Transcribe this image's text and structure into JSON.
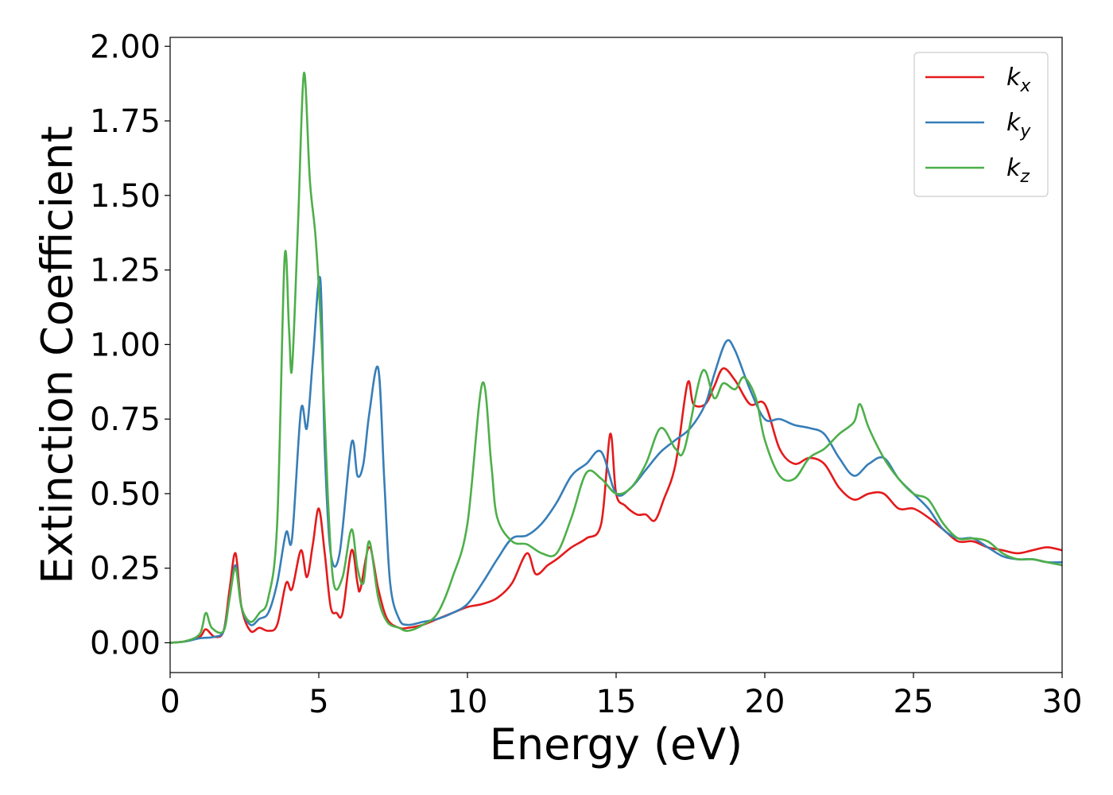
{
  "chart_data": {
    "type": "line",
    "xlabel": "Energy (eV)",
    "ylabel": "Extinction Coefficient",
    "xlim": [
      0,
      30
    ],
    "ylim": [
      -0.1,
      2.03
    ],
    "x_ticks": [
      0,
      5,
      10,
      15,
      20,
      25,
      30
    ],
    "y_ticks": [
      0.0,
      0.25,
      0.5,
      0.75,
      1.0,
      1.25,
      1.5,
      1.75,
      2.0
    ],
    "y_tick_labels": [
      "0.00",
      "0.25",
      "0.50",
      "0.75",
      "1.00",
      "1.25",
      "1.50",
      "1.75",
      "2.00"
    ],
    "grid": false,
    "legend_position": "top-right",
    "series": [
      {
        "name": "k",
        "subscript": "x",
        "color": "#e41a1c",
        "points": [
          [
            0,
            0
          ],
          [
            0.5,
            0.005
          ],
          [
            1.0,
            0.02
          ],
          [
            1.2,
            0.045
          ],
          [
            1.5,
            0.02
          ],
          [
            1.8,
            0.04
          ],
          [
            2.0,
            0.18
          ],
          [
            2.2,
            0.3
          ],
          [
            2.4,
            0.12
          ],
          [
            2.7,
            0.04
          ],
          [
            3.0,
            0.05
          ],
          [
            3.3,
            0.04
          ],
          [
            3.6,
            0.06
          ],
          [
            3.9,
            0.2
          ],
          [
            4.1,
            0.18
          ],
          [
            4.4,
            0.31
          ],
          [
            4.6,
            0.22
          ],
          [
            4.8,
            0.33
          ],
          [
            5.0,
            0.45
          ],
          [
            5.2,
            0.3
          ],
          [
            5.4,
            0.12
          ],
          [
            5.6,
            0.1
          ],
          [
            5.8,
            0.1
          ],
          [
            6.1,
            0.31
          ],
          [
            6.3,
            0.2
          ],
          [
            6.4,
            0.18
          ],
          [
            6.7,
            0.32
          ],
          [
            7.0,
            0.18
          ],
          [
            7.3,
            0.08
          ],
          [
            7.7,
            0.05
          ],
          [
            8.0,
            0.05
          ],
          [
            8.5,
            0.06
          ],
          [
            9.0,
            0.08
          ],
          [
            9.5,
            0.1
          ],
          [
            10.0,
            0.12
          ],
          [
            10.5,
            0.13
          ],
          [
            11.0,
            0.15
          ],
          [
            11.5,
            0.2
          ],
          [
            12.0,
            0.3
          ],
          [
            12.3,
            0.23
          ],
          [
            12.7,
            0.26
          ],
          [
            13.0,
            0.28
          ],
          [
            13.5,
            0.32
          ],
          [
            14.0,
            0.35
          ],
          [
            14.5,
            0.4
          ],
          [
            14.8,
            0.7
          ],
          [
            15.0,
            0.5
          ],
          [
            15.3,
            0.46
          ],
          [
            15.7,
            0.43
          ],
          [
            16.0,
            0.43
          ],
          [
            16.3,
            0.41
          ],
          [
            16.6,
            0.48
          ],
          [
            17.0,
            0.6
          ],
          [
            17.4,
            0.87
          ],
          [
            17.6,
            0.8
          ],
          [
            18.0,
            0.8
          ],
          [
            18.3,
            0.86
          ],
          [
            18.6,
            0.92
          ],
          [
            19.0,
            0.88
          ],
          [
            19.5,
            0.8
          ],
          [
            20.0,
            0.8
          ],
          [
            20.5,
            0.65
          ],
          [
            21.0,
            0.6
          ],
          [
            21.5,
            0.62
          ],
          [
            22.0,
            0.6
          ],
          [
            22.5,
            0.52
          ],
          [
            23.0,
            0.48
          ],
          [
            23.5,
            0.5
          ],
          [
            24.0,
            0.5
          ],
          [
            24.5,
            0.45
          ],
          [
            25.0,
            0.45
          ],
          [
            25.5,
            0.42
          ],
          [
            26.0,
            0.38
          ],
          [
            26.5,
            0.34
          ],
          [
            27.0,
            0.34
          ],
          [
            27.5,
            0.32
          ],
          [
            28.0,
            0.31
          ],
          [
            28.5,
            0.3
          ],
          [
            29.0,
            0.31
          ],
          [
            29.5,
            0.32
          ],
          [
            30.0,
            0.31
          ]
        ]
      },
      {
        "name": "k",
        "subscript": "y",
        "color": "#377eb8",
        "points": [
          [
            0,
            0
          ],
          [
            0.5,
            0.004
          ],
          [
            1.0,
            0.015
          ],
          [
            1.5,
            0.02
          ],
          [
            1.8,
            0.04
          ],
          [
            2.0,
            0.15
          ],
          [
            2.2,
            0.26
          ],
          [
            2.4,
            0.12
          ],
          [
            2.7,
            0.06
          ],
          [
            3.0,
            0.08
          ],
          [
            3.3,
            0.1
          ],
          [
            3.6,
            0.2
          ],
          [
            3.9,
            0.37
          ],
          [
            4.1,
            0.35
          ],
          [
            4.4,
            0.78
          ],
          [
            4.6,
            0.72
          ],
          [
            4.8,
            0.95
          ],
          [
            5.05,
            1.22
          ],
          [
            5.2,
            0.65
          ],
          [
            5.4,
            0.3
          ],
          [
            5.7,
            0.3
          ],
          [
            6.1,
            0.67
          ],
          [
            6.3,
            0.56
          ],
          [
            6.5,
            0.6
          ],
          [
            6.7,
            0.77
          ],
          [
            7.0,
            0.92
          ],
          [
            7.2,
            0.55
          ],
          [
            7.4,
            0.2
          ],
          [
            7.7,
            0.08
          ],
          [
            8.0,
            0.06
          ],
          [
            8.5,
            0.07
          ],
          [
            9.0,
            0.08
          ],
          [
            9.5,
            0.1
          ],
          [
            10.0,
            0.13
          ],
          [
            10.5,
            0.2
          ],
          [
            11.0,
            0.28
          ],
          [
            11.5,
            0.35
          ],
          [
            12.0,
            0.36
          ],
          [
            12.5,
            0.4
          ],
          [
            13.0,
            0.47
          ],
          [
            13.5,
            0.56
          ],
          [
            14.0,
            0.6
          ],
          [
            14.5,
            0.64
          ],
          [
            15.0,
            0.5
          ],
          [
            15.5,
            0.52
          ],
          [
            16.0,
            0.58
          ],
          [
            16.5,
            0.64
          ],
          [
            17.0,
            0.68
          ],
          [
            17.5,
            0.72
          ],
          [
            18.0,
            0.8
          ],
          [
            18.3,
            0.9
          ],
          [
            18.7,
            1.01
          ],
          [
            19.0,
            0.98
          ],
          [
            19.5,
            0.85
          ],
          [
            20.0,
            0.75
          ],
          [
            20.5,
            0.75
          ],
          [
            21.0,
            0.73
          ],
          [
            21.5,
            0.72
          ],
          [
            22.0,
            0.7
          ],
          [
            22.5,
            0.62
          ],
          [
            23.0,
            0.56
          ],
          [
            23.5,
            0.6
          ],
          [
            24.0,
            0.62
          ],
          [
            24.5,
            0.55
          ],
          [
            25.0,
            0.5
          ],
          [
            25.5,
            0.45
          ],
          [
            26.0,
            0.38
          ],
          [
            26.5,
            0.35
          ],
          [
            27.0,
            0.35
          ],
          [
            27.5,
            0.32
          ],
          [
            28.0,
            0.29
          ],
          [
            28.5,
            0.28
          ],
          [
            29.0,
            0.28
          ],
          [
            29.5,
            0.27
          ],
          [
            30.0,
            0.27
          ]
        ]
      },
      {
        "name": "k",
        "subscript": "z",
        "color": "#4daf4a",
        "points": [
          [
            0,
            0
          ],
          [
            0.5,
            0.005
          ],
          [
            1.0,
            0.03
          ],
          [
            1.2,
            0.1
          ],
          [
            1.4,
            0.05
          ],
          [
            1.8,
            0.04
          ],
          [
            2.0,
            0.15
          ],
          [
            2.2,
            0.25
          ],
          [
            2.4,
            0.12
          ],
          [
            2.7,
            0.07
          ],
          [
            3.0,
            0.1
          ],
          [
            3.3,
            0.15
          ],
          [
            3.6,
            0.4
          ],
          [
            3.85,
            1.29
          ],
          [
            4.0,
            1.05
          ],
          [
            4.1,
            0.92
          ],
          [
            4.3,
            1.4
          ],
          [
            4.5,
            1.91
          ],
          [
            4.7,
            1.55
          ],
          [
            4.9,
            1.35
          ],
          [
            5.1,
            1.0
          ],
          [
            5.3,
            0.5
          ],
          [
            5.5,
            0.2
          ],
          [
            5.8,
            0.22
          ],
          [
            6.1,
            0.38
          ],
          [
            6.3,
            0.25
          ],
          [
            6.5,
            0.2
          ],
          [
            6.7,
            0.34
          ],
          [
            7.0,
            0.15
          ],
          [
            7.3,
            0.07
          ],
          [
            7.7,
            0.05
          ],
          [
            8.0,
            0.04
          ],
          [
            8.5,
            0.06
          ],
          [
            9.0,
            0.1
          ],
          [
            9.5,
            0.22
          ],
          [
            10.0,
            0.4
          ],
          [
            10.5,
            0.87
          ],
          [
            10.8,
            0.6
          ],
          [
            11.0,
            0.42
          ],
          [
            11.5,
            0.34
          ],
          [
            12.0,
            0.33
          ],
          [
            12.5,
            0.3
          ],
          [
            13.0,
            0.3
          ],
          [
            13.5,
            0.42
          ],
          [
            14.0,
            0.57
          ],
          [
            14.5,
            0.55
          ],
          [
            15.0,
            0.5
          ],
          [
            15.5,
            0.52
          ],
          [
            16.0,
            0.6
          ],
          [
            16.5,
            0.72
          ],
          [
            17.0,
            0.65
          ],
          [
            17.3,
            0.65
          ],
          [
            17.9,
            0.91
          ],
          [
            18.3,
            0.82
          ],
          [
            18.6,
            0.87
          ],
          [
            19.0,
            0.85
          ],
          [
            19.3,
            0.89
          ],
          [
            19.7,
            0.82
          ],
          [
            20.0,
            0.68
          ],
          [
            20.5,
            0.56
          ],
          [
            21.0,
            0.55
          ],
          [
            21.5,
            0.62
          ],
          [
            22.0,
            0.65
          ],
          [
            22.5,
            0.7
          ],
          [
            23.0,
            0.74
          ],
          [
            23.2,
            0.8
          ],
          [
            23.5,
            0.72
          ],
          [
            24.0,
            0.62
          ],
          [
            24.5,
            0.55
          ],
          [
            25.0,
            0.5
          ],
          [
            25.5,
            0.48
          ],
          [
            26.0,
            0.4
          ],
          [
            26.5,
            0.35
          ],
          [
            27.0,
            0.35
          ],
          [
            27.5,
            0.34
          ],
          [
            28.0,
            0.3
          ],
          [
            28.5,
            0.28
          ],
          [
            29.0,
            0.28
          ],
          [
            29.5,
            0.27
          ],
          [
            30.0,
            0.26
          ]
        ]
      }
    ]
  }
}
